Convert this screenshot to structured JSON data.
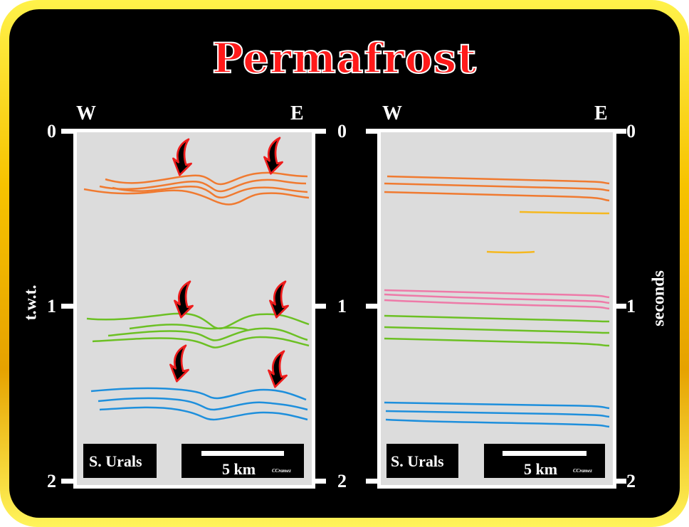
{
  "title": "Permafrost",
  "left_section": {
    "west_label": "W",
    "east_label": "E",
    "axis_title": "t.w.t.",
    "ticks": [
      "0",
      "1",
      "2"
    ],
    "location_label": "S. Urals",
    "scale_label": "5 km",
    "credit": "CCramez"
  },
  "right_section": {
    "west_label": "W",
    "east_label": "E",
    "axis_title": "seconds",
    "ticks": [
      "0",
      "1",
      "2"
    ],
    "location_label": "S. Urals",
    "scale_label": "5 km",
    "credit": "CCramez"
  },
  "colors": {
    "frame_gold": "#f7c300",
    "title_red": "#ff1a1a",
    "panel_grey": "#dcdcdc",
    "orange_horizon": "#f07a30",
    "yellow_horizon": "#f5b820",
    "pink_horizon": "#ee7aa8",
    "green_horizon": "#6cc024",
    "blue_horizon": "#1e8fdc",
    "arrow_fill": "#000000",
    "arrow_outline": "#ee1c1c"
  },
  "icons": [
    "curved-arrow-icon"
  ]
}
